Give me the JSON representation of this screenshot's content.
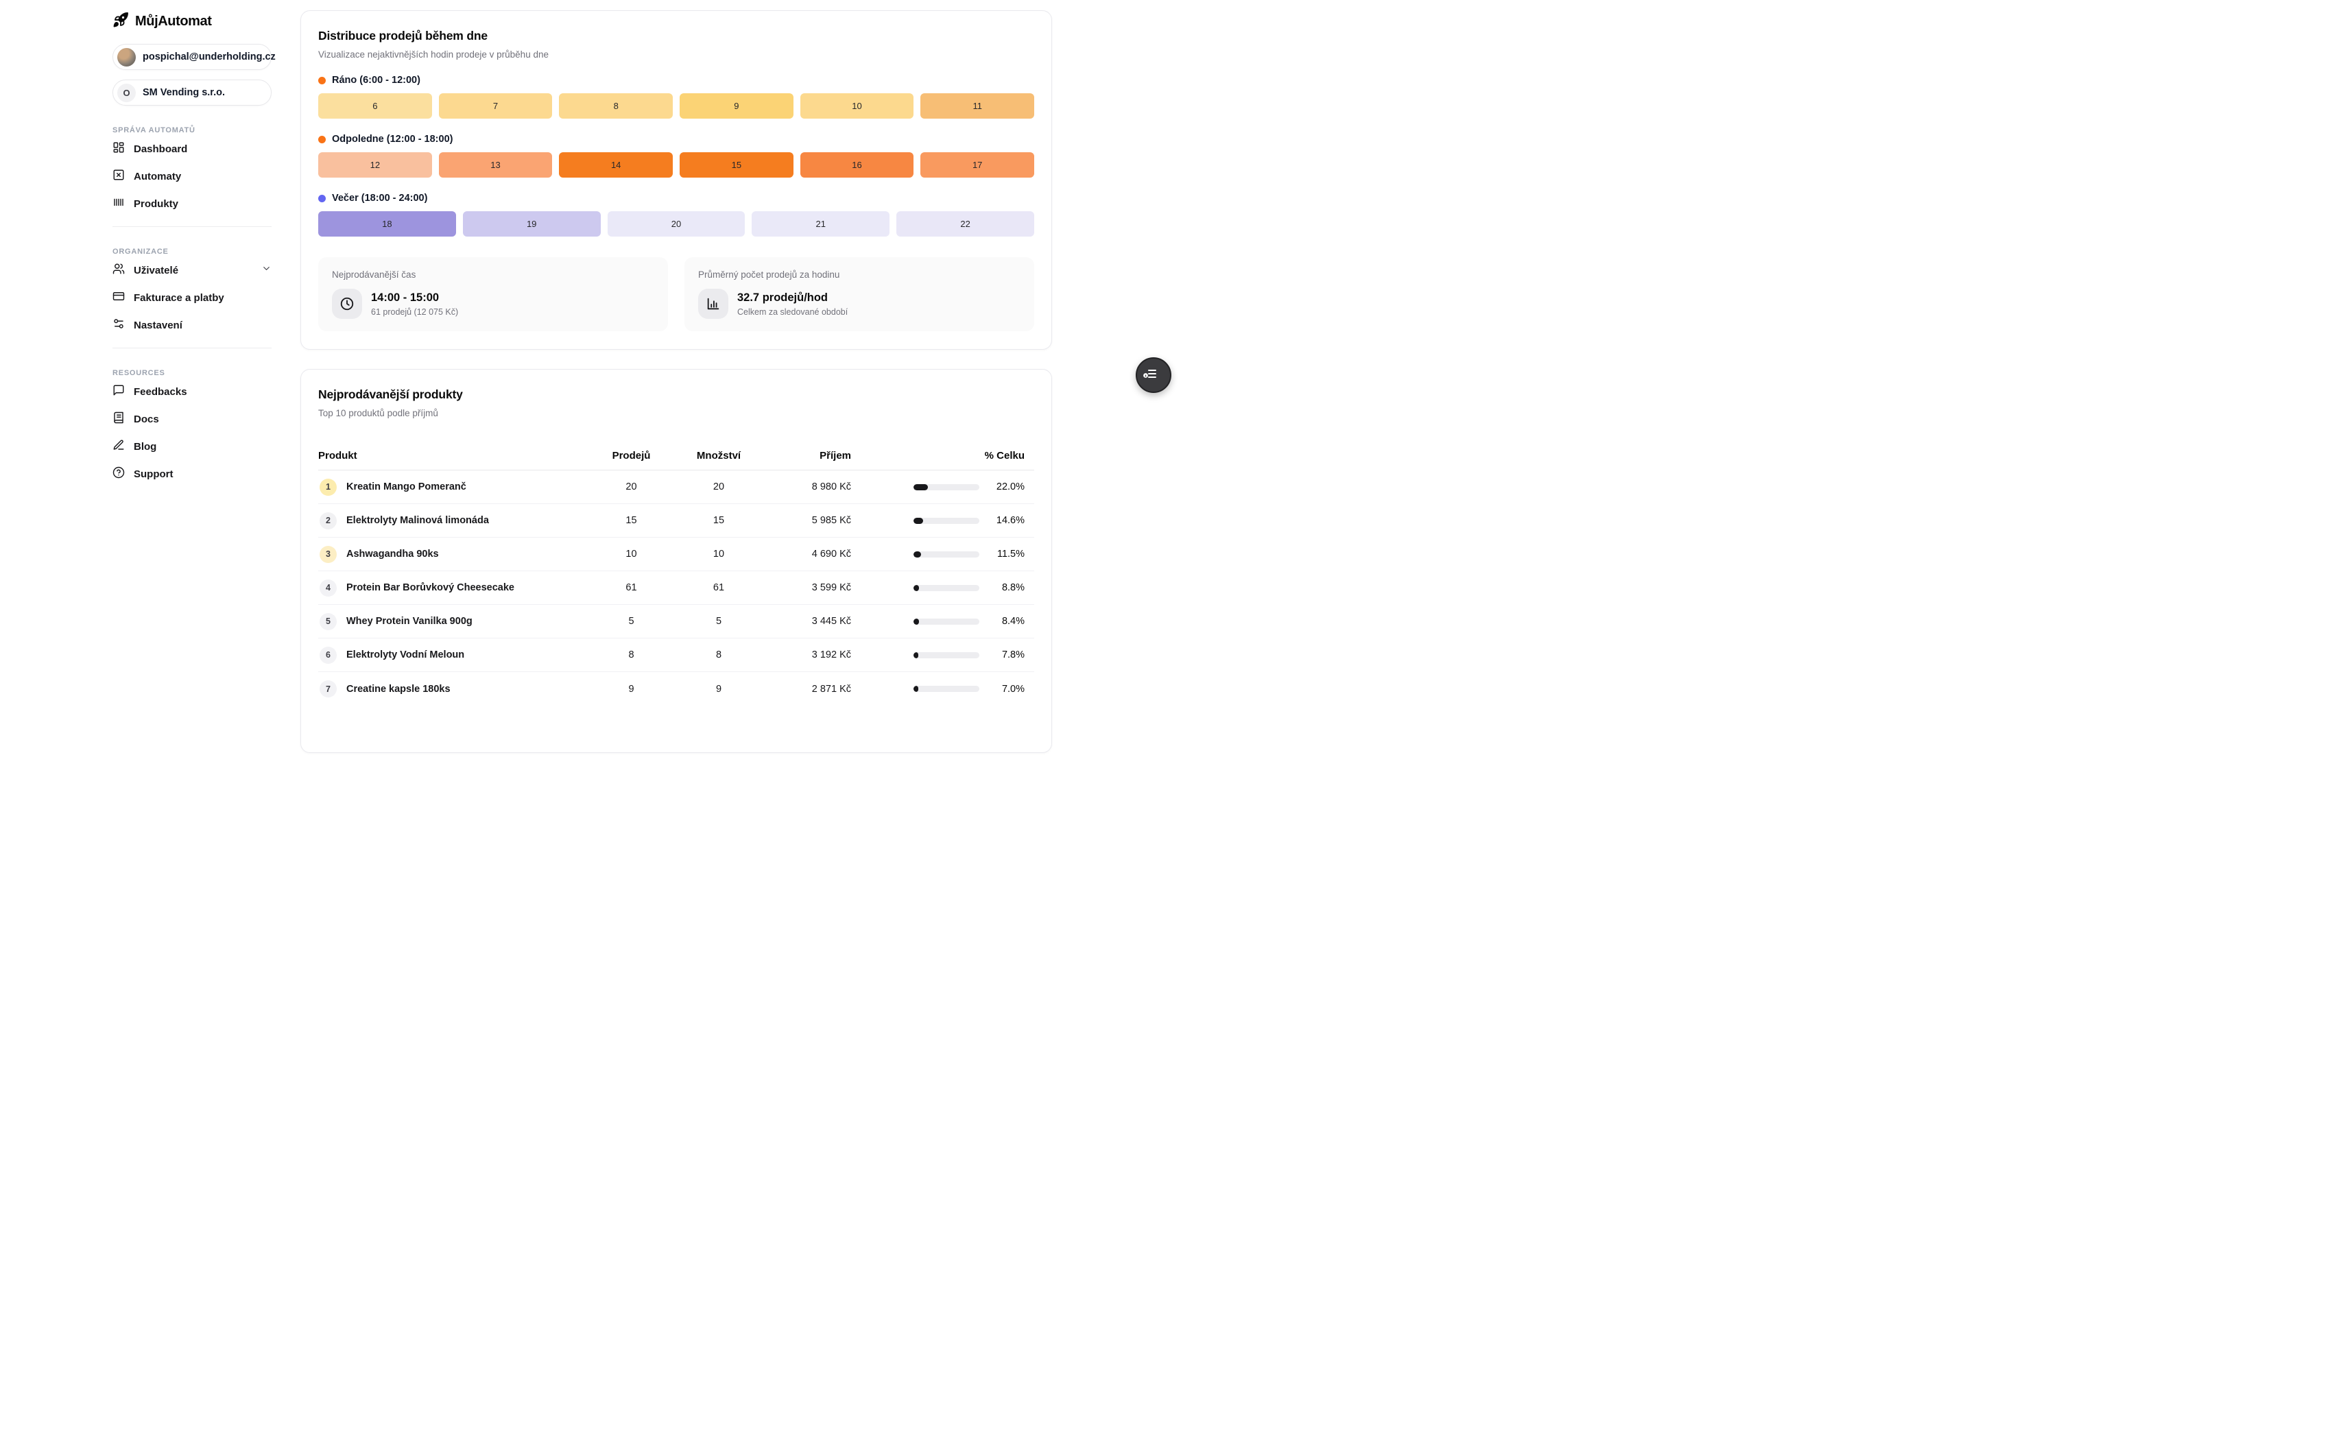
{
  "brand": {
    "name": "MůjAutomat",
    "logo_icon": "rocket-icon"
  },
  "sidebar": {
    "user": {
      "email": "pospichal@underholding.cz"
    },
    "organization": {
      "initial": "O",
      "name": "SM Vending s.r.o."
    },
    "sections": [
      {
        "label": "SPRÁVA AUTOMATŮ",
        "items": [
          {
            "label": "Dashboard",
            "icon": "dashboard"
          },
          {
            "label": "Automaty",
            "icon": "square-x"
          },
          {
            "label": "Produkty",
            "icon": "barcode"
          }
        ]
      },
      {
        "label": "ORGANIZACE",
        "items": [
          {
            "label": "Uživatelé",
            "icon": "users",
            "chevron": true
          },
          {
            "label": "Fakturace a platby",
            "icon": "credit-card"
          },
          {
            "label": "Nastavení",
            "icon": "sliders"
          }
        ]
      },
      {
        "label": "RESOURCES",
        "items": [
          {
            "label": "Feedbacks",
            "icon": "message"
          },
          {
            "label": "Docs",
            "icon": "book"
          },
          {
            "label": "Blog",
            "icon": "pencil"
          },
          {
            "label": "Support",
            "icon": "help"
          }
        ]
      }
    ]
  },
  "distribution_card": {
    "title": "Distribuce prodejů během dne",
    "subtitle": "Vizualizace nejaktivnějších hodin prodeje v průběhu dne",
    "groups": [
      {
        "label": "Ráno (6:00 - 12:00)",
        "dot_color": "#f97316",
        "blocks": [
          {
            "hour": "6",
            "color": "#fbdf9e"
          },
          {
            "hour": "7",
            "color": "#fcd990"
          },
          {
            "hour": "8",
            "color": "#fcd98f"
          },
          {
            "hour": "9",
            "color": "#fbd375"
          },
          {
            "hour": "10",
            "color": "#fcd98e"
          },
          {
            "hour": "11",
            "color": "#f7be75"
          }
        ]
      },
      {
        "label": "Odpoledne (12:00 - 18:00)",
        "dot_color": "#f97316",
        "blocks": [
          {
            "hour": "12",
            "color": "#f9c09e"
          },
          {
            "hour": "13",
            "color": "#faa472"
          },
          {
            "hour": "14",
            "color": "#f57d1f"
          },
          {
            "hour": "15",
            "color": "#f57d1f"
          },
          {
            "hour": "16",
            "color": "#f78742"
          },
          {
            "hour": "17",
            "color": "#f99a5f"
          }
        ]
      },
      {
        "label": "Večer (18:00 - 24:00)",
        "dot_color": "#6366f1",
        "blocks": [
          {
            "hour": "18",
            "color": "#9d94de"
          },
          {
            "hour": "19",
            "color": "#cdc9ef"
          },
          {
            "hour": "20",
            "color": "#eae9f8"
          },
          {
            "hour": "21",
            "color": "#eae9f8"
          },
          {
            "hour": "22",
            "color": "#e9e7f7"
          }
        ]
      }
    ],
    "stats": [
      {
        "label": "Nejprodávanější čas",
        "icon": "clock-icon",
        "value": "14:00 - 15:00",
        "sub": "61 prodejů (12 075 Kč)"
      },
      {
        "label": "Průměrný počet prodejů za hodinu",
        "icon": "bar-chart-icon",
        "value": "32.7 prodejů/hod",
        "sub": "Celkem za sledované období"
      }
    ]
  },
  "products_card": {
    "title": "Nejprodávanější produkty",
    "subtitle": "Top 10 produktů podle příjmů",
    "columns": [
      "Produkt",
      "Prodejů",
      "Množství",
      "Příjem",
      "% Celku"
    ],
    "rows": [
      {
        "rank": "1",
        "badge_color": "#fcecae",
        "name": "Kreatin Mango Pomeranč",
        "sales": "20",
        "qty": "20",
        "revenue": "8 980 Kč",
        "pct": 22.0,
        "pct_label": "22.0%"
      },
      {
        "rank": "2",
        "badge_color": "#f1f1f3",
        "name": "Elektrolyty Malinová limonáda",
        "sales": "15",
        "qty": "15",
        "revenue": "5 985 Kč",
        "pct": 14.6,
        "pct_label": "14.6%"
      },
      {
        "rank": "3",
        "badge_color": "#fceec4",
        "name": "Ashwagandha 90ks",
        "sales": "10",
        "qty": "10",
        "revenue": "4 690 Kč",
        "pct": 11.5,
        "pct_label": "11.5%"
      },
      {
        "rank": "4",
        "badge_color": "#f2f2f5",
        "name": "Protein Bar Borůvkový Cheesecake",
        "sales": "61",
        "qty": "61",
        "revenue": "3 599 Kč",
        "pct": 8.8,
        "pct_label": "8.8%"
      },
      {
        "rank": "5",
        "badge_color": "#f2f2f5",
        "name": "Whey Protein Vanilka 900g",
        "sales": "5",
        "qty": "5",
        "revenue": "3 445 Kč",
        "pct": 8.4,
        "pct_label": "8.4%"
      },
      {
        "rank": "6",
        "badge_color": "#f2f2f5",
        "name": "Elektrolyty Vodní Meloun",
        "sales": "8",
        "qty": "8",
        "revenue": "3 192 Kč",
        "pct": 7.8,
        "pct_label": "7.8%"
      },
      {
        "rank": "7",
        "badge_color": "#f2f2f5",
        "name": "Creatine kapsle 180ks",
        "sales": "9",
        "qty": "9",
        "revenue": "2 871 Kč",
        "pct": 7.0,
        "pct_label": "7.0%"
      }
    ]
  },
  "floating_button": {
    "icon": "widget-list-play-icon"
  }
}
